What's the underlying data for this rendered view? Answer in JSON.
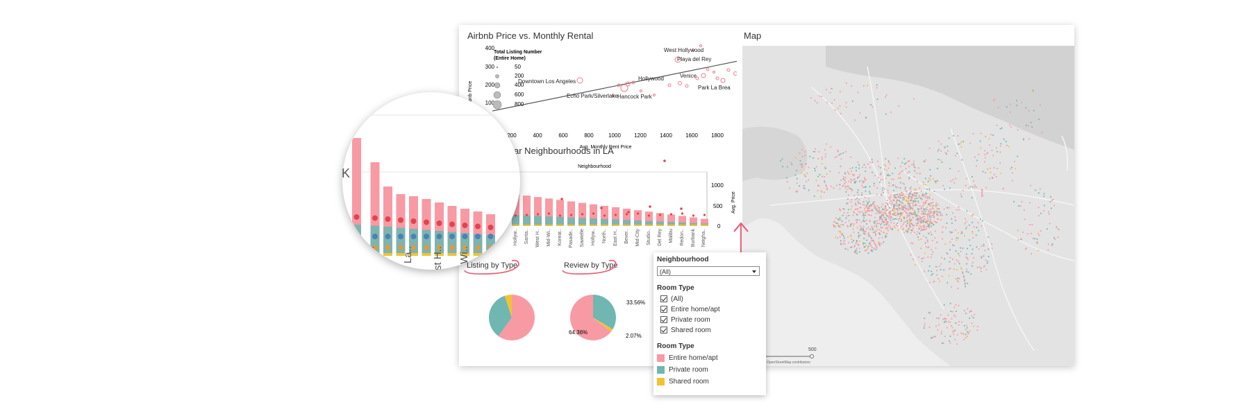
{
  "scatter": {
    "title": "Airbnb Price vs. Monthly Rental",
    "ylabel": "Nightly Airbnb Price",
    "xlabel": "Avg. Monthly Rent Price",
    "y_ticks": [
      "400",
      "300",
      "200",
      "100"
    ],
    "x_ticks": [
      "200",
      "400",
      "600",
      "800",
      "1000",
      "1200",
      "1400",
      "1600",
      "1800"
    ],
    "size_legend": {
      "title_line1": "Total Listing Number",
      "title_line2": "(Entire Home)",
      "values": [
        "50",
        "200",
        "400",
        "600",
        "800"
      ]
    },
    "labels": [
      "West Hollywood",
      "Playa del Rey",
      "Venice",
      "Hollywood",
      "Downtown Los Angeles",
      "Park La Brea",
      "Echo Park/Silverlake",
      "Hancock Park"
    ]
  },
  "bar_chart": {
    "title": "Top Popular Neighbourhoods in LA",
    "title_visible": "ar Neighbourhoods in LA",
    "top_header": "Neighbourhood",
    "right_axis_label": "Avg. Price",
    "right_ticks": [
      "1000",
      "500",
      "0"
    ],
    "categories": [
      "Hollyw..",
      "Santa..",
      "West H..",
      "Mid-Wi..",
      "Koreat..",
      "Pasade..",
      "Sawtelle",
      "Hollyw..",
      "North..",
      "East H..",
      "Bever..",
      "Mid-City",
      "Studio..",
      "Del Rey",
      "Malibu",
      "Redon..",
      "Burbank",
      "Neigha.."
    ],
    "magnifier_labels": [
      "...",
      "La..",
      "st H..",
      "Wi.."
    ],
    "magnifier_k": "K"
  },
  "pies": {
    "listing_title": "Listing by Type",
    "review_title": "Review by Type",
    "review_labels": {
      "private": "33.56%",
      "entire": "64.36%",
      "shared": "2.07%"
    }
  },
  "map": {
    "title": "Map",
    "scale_value": "500",
    "attribution": "© OpenStreetMap contributors"
  },
  "filters": {
    "neighbourhood_title": "Neighbourhood",
    "neighbourhood_value": "(All)",
    "room_type_title": "Room Type",
    "room_type_options": [
      "(All)",
      "Entire home/apt",
      "Private room",
      "Shared room"
    ],
    "legend_title": "Room Type",
    "legend_items": [
      {
        "label": "Entire home/apt",
        "color": "#f89aa3"
      },
      {
        "label": "Private room",
        "color": "#6fb7b0"
      },
      {
        "label": "Shared room",
        "color": "#f2c232"
      }
    ]
  },
  "colors": {
    "entire": "#f89aa3",
    "private": "#6fb7b0",
    "shared": "#f2c232",
    "dot_red": "#e0454f",
    "dot_blue": "#4a82b8",
    "annotation": "#e8637b"
  }
}
